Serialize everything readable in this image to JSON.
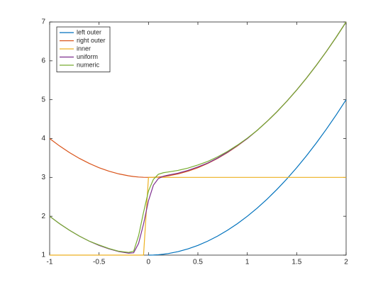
{
  "chart_data": {
    "type": "line",
    "x": [
      -1,
      -0.9,
      -0.8,
      -0.7,
      -0.6,
      -0.5,
      -0.4,
      -0.3,
      -0.2,
      -0.15,
      -0.1,
      -0.05,
      0,
      0.05,
      0.1,
      0.15,
      0.2,
      0.3,
      0.4,
      0.5,
      0.6,
      0.7,
      0.8,
      0.9,
      1,
      1.1,
      1.2,
      1.3,
      1.4,
      1.5,
      1.6,
      1.7,
      1.8,
      1.9,
      2
    ],
    "series": [
      {
        "name": "left outer",
        "color": "#0072BD",
        "values": [
          null,
          null,
          null,
          null,
          null,
          null,
          null,
          null,
          null,
          null,
          null,
          null,
          1,
          1.0025,
          1.01,
          1.0225,
          1.04,
          1.09,
          1.16,
          1.25,
          1.36,
          1.49,
          1.64,
          1.81,
          2,
          2.21,
          2.44,
          2.69,
          2.96,
          3.25,
          3.56,
          3.89,
          4.24,
          4.61,
          5
        ]
      },
      {
        "name": "right outer",
        "color": "#D95319",
        "values": [
          4,
          3.81,
          3.64,
          3.49,
          3.36,
          3.25,
          3.16,
          3.09,
          3.04,
          3.0225,
          3.01,
          3.0025,
          3,
          3.0025,
          3.01,
          3.0225,
          3.04,
          3.09,
          3.16,
          3.25,
          3.36,
          3.49,
          3.64,
          3.81,
          4,
          4.21,
          4.44,
          4.69,
          4.96,
          5.25,
          5.56,
          5.89,
          6.24,
          6.61,
          7
        ]
      },
      {
        "name": "inner",
        "color": "#EDB120",
        "values": [
          1,
          1,
          1,
          1,
          1,
          1,
          1,
          1,
          1,
          1,
          1,
          1,
          3,
          3,
          3,
          3,
          3,
          3,
          3,
          3,
          3,
          3,
          3,
          3,
          3,
          3,
          3,
          3,
          3,
          3,
          3,
          3,
          3,
          3,
          3
        ]
      },
      {
        "name": "uniform",
        "color": "#7E2F8E",
        "values": [
          2,
          1.81,
          1.64,
          1.49,
          1.36,
          1.25,
          1.16,
          1.09,
          1.05,
          1.06,
          1.3,
          1.8,
          2.4,
          2.8,
          2.97,
          3.03,
          3.06,
          3.11,
          3.18,
          3.27,
          3.37,
          3.5,
          3.65,
          3.82,
          4,
          4.21,
          4.44,
          4.69,
          4.96,
          5.25,
          5.56,
          5.89,
          6.24,
          6.61,
          7
        ]
      },
      {
        "name": "numeric",
        "color": "#77AC30",
        "values": [
          2,
          1.81,
          1.64,
          1.49,
          1.36,
          1.26,
          1.17,
          1.1,
          1.07,
          1.1,
          1.5,
          2.1,
          2.65,
          2.95,
          3.08,
          3.12,
          3.14,
          3.18,
          3.24,
          3.32,
          3.41,
          3.53,
          3.67,
          3.83,
          4.01,
          4.21,
          4.44,
          4.69,
          4.96,
          5.25,
          5.56,
          5.89,
          6.24,
          6.61,
          7
        ]
      }
    ],
    "xlim": [
      -1,
      2
    ],
    "ylim": [
      1,
      7
    ],
    "xticks": [
      -1,
      -0.5,
      0,
      0.5,
      1,
      1.5,
      2
    ],
    "yticks": [
      1,
      2,
      3,
      4,
      5,
      6,
      7
    ],
    "grid": false,
    "legend": "top-left"
  }
}
